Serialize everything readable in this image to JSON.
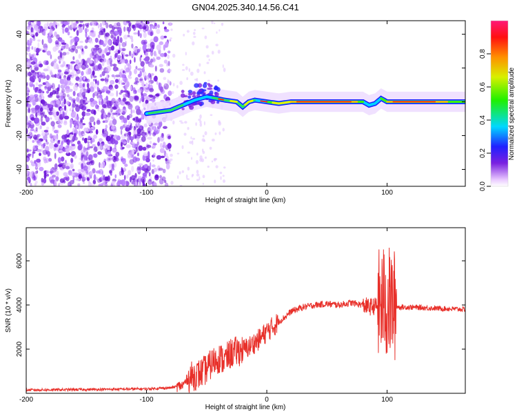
{
  "page_title": "GN04.2025.340.14.56.C41",
  "chart_data": [
    {
      "type": "heatmap",
      "title": "GN04.2025.340.14.56.C41",
      "xlabel": "Height of straight line (km)",
      "ylabel": "Frequency (Hz)",
      "xlim": [
        -200,
        165
      ],
      "ylim": [
        -50,
        48
      ],
      "xticks": [
        -200,
        -100,
        0,
        100
      ],
      "xtick_labels": [
        "-200",
        "-100",
        "0",
        "100"
      ],
      "yticks": [
        -40,
        -20,
        0,
        20,
        40
      ],
      "ytick_labels": [
        "-40",
        "-20",
        "0",
        "20",
        "40"
      ],
      "colorbar": {
        "label": "Normalized spectral amplitude",
        "range": [
          0,
          1
        ],
        "ticks": [
          0.0,
          0.2,
          0.4,
          0.6,
          0.8
        ],
        "tick_labels": [
          "0.0",
          "0.2",
          "0.4",
          "0.6",
          "0.8"
        ]
      },
      "ridge": {
        "description_points_x": [
          -100,
          -90,
          -80,
          -70,
          -60,
          -50,
          -42,
          -35,
          -25,
          -20,
          -15,
          -10,
          0,
          10,
          20,
          40,
          60,
          80,
          85,
          90,
          95,
          100,
          120,
          165
        ],
        "description_points_y": [
          -7,
          -6,
          -5,
          -2,
          1,
          3,
          2,
          1,
          0,
          -3,
          0,
          1,
          0,
          -1,
          0,
          0,
          0,
          0,
          -2,
          -1,
          2,
          0,
          0,
          0
        ]
      }
    },
    {
      "type": "line",
      "xlabel": "Height of straight line (km)",
      "ylabel": "SNR (10 * v/v)",
      "xlim": [
        -200,
        165
      ],
      "ylim": [
        0,
        7500
      ],
      "xticks": [
        -200,
        -100,
        0,
        100
      ],
      "xtick_labels": [
        "-200",
        "-100",
        "0",
        "100"
      ],
      "yticks": [
        2000,
        4000,
        6000
      ],
      "ytick_labels": [
        "2000",
        "4000",
        "6000"
      ],
      "series": [
        {
          "name": "SNR",
          "color": "#e8302a",
          "x": [
            -200,
            -150,
            -100,
            -80,
            -70,
            -65,
            -60,
            -55,
            -50,
            -45,
            -40,
            -35,
            -30,
            -25,
            -20,
            -15,
            -10,
            -5,
            0,
            5,
            10,
            15,
            20,
            30,
            40,
            50,
            60,
            70,
            80,
            85,
            90,
            95,
            98,
            100,
            102,
            105,
            110,
            120,
            140,
            165
          ],
          "y": [
            150,
            170,
            200,
            250,
            350,
            700,
            800,
            900,
            1100,
            1400,
            1600,
            1500,
            1800,
            1900,
            1950,
            2100,
            2300,
            2500,
            2800,
            3000,
            3250,
            3450,
            3700,
            3900,
            4000,
            4050,
            4000,
            4100,
            4000,
            3900,
            3950,
            4000,
            4200,
            3900,
            4100,
            4000,
            3900,
            3900,
            3850,
            3800
          ]
        }
      ]
    }
  ]
}
